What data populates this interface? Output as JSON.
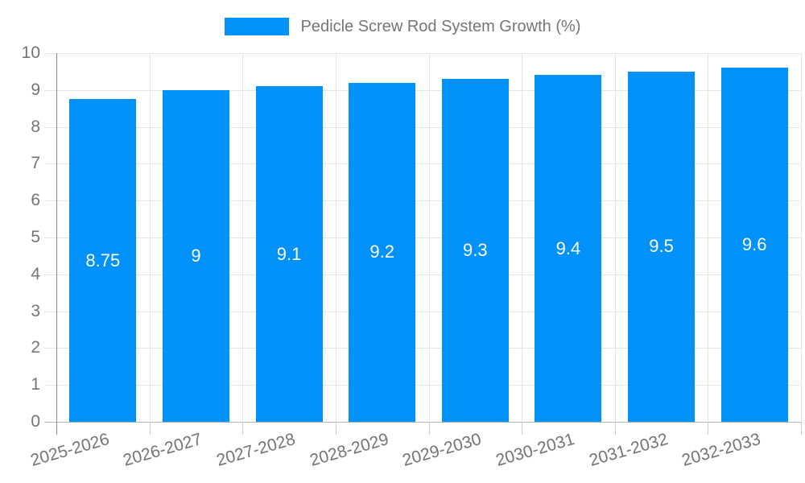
{
  "legend": {
    "label": "Pedicle Screw Rod System Growth (%)"
  },
  "chart_data": {
    "type": "bar",
    "title": "Pedicle Screw Rod System Growth (%)",
    "categories": [
      "2025-2026",
      "2026-2027",
      "2027-2028",
      "2028-2029",
      "2029-2030",
      "2030-2031",
      "2031-2032",
      "2032-2033"
    ],
    "values": [
      8.75,
      9,
      9.1,
      9.2,
      9.3,
      9.4,
      9.5,
      9.6
    ],
    "value_labels": [
      "8.75",
      "9",
      "9.1",
      "9.2",
      "9.3",
      "9.4",
      "9.5",
      "9.6"
    ],
    "xlabel": "",
    "ylabel": "",
    "ylim": [
      0,
      10
    ],
    "yticks": [
      0,
      1,
      2,
      3,
      4,
      5,
      6,
      7,
      8,
      9,
      10
    ],
    "grid": true,
    "legend_position": "top-center",
    "colors": {
      "bar": "#0191fa",
      "value_label": "#ffffff",
      "axis_text": "#757575",
      "gridline": "#e6e6e6",
      "axis_line": "#8c8c8c",
      "baseline": "#b3b3b3"
    }
  }
}
